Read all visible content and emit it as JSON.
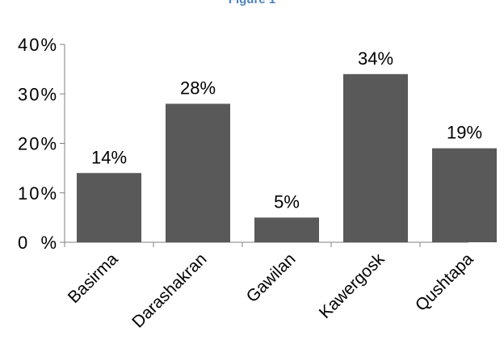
{
  "figure_label": "Figure 1",
  "chart_data": {
    "type": "bar",
    "categories": [
      "Basirma",
      "Darashakran",
      "Gawilan",
      "Kawergosk",
      "Qushtapa"
    ],
    "values": [
      14,
      28,
      5,
      34,
      19
    ],
    "value_labels": [
      "14%",
      "28%",
      "5%",
      "34%",
      "19%"
    ],
    "yticks": [
      0,
      10,
      20,
      30,
      40
    ],
    "ytick_labels": [
      "0%",
      "10%",
      "20%",
      "30%",
      "40%"
    ],
    "ylim": [
      0,
      40
    ],
    "title": "",
    "xlabel": "",
    "ylabel": "",
    "grid": false,
    "legend": "none",
    "bar_color": "#595959",
    "axis_color": "#808080"
  }
}
